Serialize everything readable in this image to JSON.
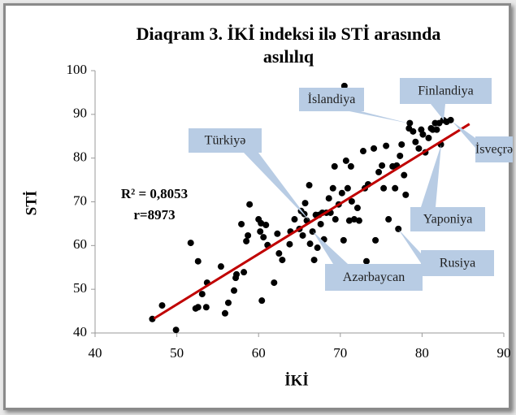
{
  "chart_data": {
    "type": "scatter",
    "title": "Diaqram 3. İKİ indeksi ilə STİ arasında asılılıq",
    "x_label": "İKİ",
    "y_label": "STİ",
    "xlim": [
      40,
      90
    ],
    "xticks": [
      40,
      50,
      60,
      70,
      80,
      90
    ],
    "ylim": [
      40,
      100
    ],
    "yticks": [
      40,
      50,
      60,
      70,
      80,
      90,
      100
    ],
    "grid": false,
    "color": "#000000",
    "x": [
      47,
      48.2,
      49.9,
      51.7,
      52.6,
      52.3,
      52.6,
      53.1,
      53.7,
      53.6,
      55.4,
      55.9,
      56.3,
      57,
      57.2,
      57.3,
      57.9,
      58.2,
      58.5,
      58.7,
      58.9,
      60,
      60.2,
      60.3,
      60.4,
      60.6,
      60.9,
      61.1,
      61.9,
      62.3,
      62.5,
      62.9,
      63.8,
      63.9,
      64.4,
      65,
      65.2,
      65.4,
      65.6,
      65.7,
      65.9,
      66.2,
      66.3,
      66.6,
      66.8,
      67,
      67.2,
      67.4,
      67.6,
      67.8,
      68,
      68.3,
      68.6,
      68.8,
      69.1,
      69.3,
      69.4,
      69.8,
      70.2,
      70.4,
      70.5,
      70.7,
      70.9,
      71.1,
      71.3,
      71.4,
      71.7,
      72.1,
      72.3,
      72.8,
      73,
      73.2,
      73.4,
      74.1,
      74.3,
      74.7,
      75.1,
      75.3,
      75.6,
      75.9,
      76.4,
      76.7,
      76.9,
      77.1,
      77.3,
      77.5,
      77.8,
      78,
      78.4,
      78.5,
      78.9,
      79.2,
      79.6,
      79.9,
      80.1,
      80.4,
      80.8,
      81.1,
      81.3,
      81.6,
      81.8,
      82.1,
      82.3,
      82.6,
      83,
      83.5
    ],
    "values": [
      43.2,
      46.3,
      40.7,
      60.6,
      56.4,
      45.6,
      45.9,
      48.9,
      51.5,
      45.9,
      55.2,
      44.5,
      46.9,
      49.7,
      52.6,
      53.4,
      64.9,
      53.9,
      61,
      62.3,
      69.4,
      66,
      63.2,
      65.1,
      47.4,
      61.9,
      64.7,
      60.1,
      51.5,
      62.7,
      58.2,
      56.7,
      60.3,
      63.2,
      66,
      63.8,
      67.9,
      62.3,
      67.2,
      69.7,
      65.7,
      73.8,
      60.4,
      63.2,
      56.7,
      67,
      59.5,
      67,
      64.9,
      67.5,
      61.4,
      67.5,
      70.8,
      67.5,
      73.1,
      78.1,
      66,
      69.4,
      72,
      61.2,
      96.5,
      79.4,
      73.1,
      65.7,
      78.1,
      70.1,
      66,
      68.6,
      65.7,
      81.6,
      73.1,
      56.4,
      74,
      82.2,
      61.2,
      76.8,
      78.3,
      73.1,
      82.8,
      66,
      78.1,
      73.1,
      78.3,
      63.8,
      80.5,
      83.1,
      76.1,
      71.6,
      86.8,
      88,
      86.1,
      83.7,
      82.2,
      86.5,
      85.4,
      81.3,
      84.6,
      86.8,
      86.5,
      88,
      86.5,
      88,
      83.1,
      88.7,
      88.3,
      88.7
    ],
    "trendline": {
      "color": "#c00000",
      "x": [
        47.2,
        85.8
      ],
      "y": [
        43.3,
        87.8
      ]
    },
    "annotations": [
      "R² = 0,8053",
      "r=8973"
    ],
    "callouts": [
      "İslandiya",
      "Finlandiya",
      "İsveçrə",
      "Türkiyə",
      "Yaponiya",
      "Azərbaycan",
      "Rusiya"
    ],
    "callout_color": "#b8cce4"
  }
}
